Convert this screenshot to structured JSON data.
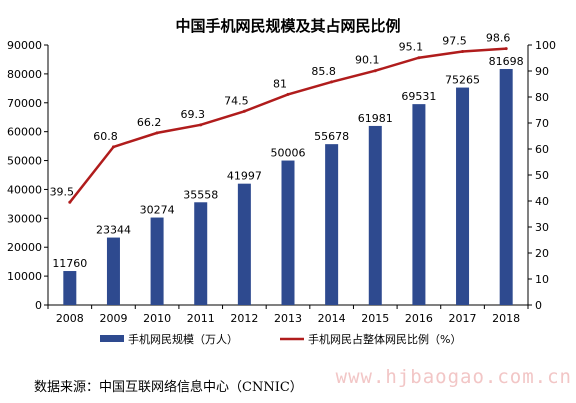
{
  "chart_data": {
    "type": "bar",
    "title": "中国手机网民规模及其占网民比例",
    "categories": [
      "2008",
      "2009",
      "2010",
      "2011",
      "2012",
      "2013",
      "2014",
      "2015",
      "2016",
      "2017",
      "2018"
    ],
    "series": [
      {
        "name": "手机网民规模（万人）",
        "type": "bar",
        "axis": "left",
        "color": "#2e4a8f",
        "values": [
          11760,
          23344,
          30274,
          35558,
          41997,
          50006,
          55678,
          61981,
          69531,
          75265,
          81698
        ]
      },
      {
        "name": "手机网民占整体网民比例（%）",
        "type": "line",
        "axis": "right",
        "color": "#b01c1c",
        "values": [
          39.5,
          60.8,
          66.2,
          69.3,
          74.5,
          81,
          85.8,
          90.1,
          95.1,
          97.5,
          98.6
        ]
      }
    ],
    "y_left": {
      "min": 0,
      "max": 90000,
      "ticks": [
        0,
        10000,
        20000,
        30000,
        40000,
        50000,
        60000,
        70000,
        80000,
        90000
      ]
    },
    "y_right": {
      "min": 0,
      "max": 100,
      "ticks": [
        0,
        10,
        20,
        30,
        40,
        50,
        60,
        70,
        80,
        90,
        100
      ]
    },
    "legend_position": "bottom",
    "grid": false
  },
  "source_text": "数据来源：中国互联网络信息中心（CNNIC）",
  "watermark_text": "www.hjbaogao.com.cn"
}
